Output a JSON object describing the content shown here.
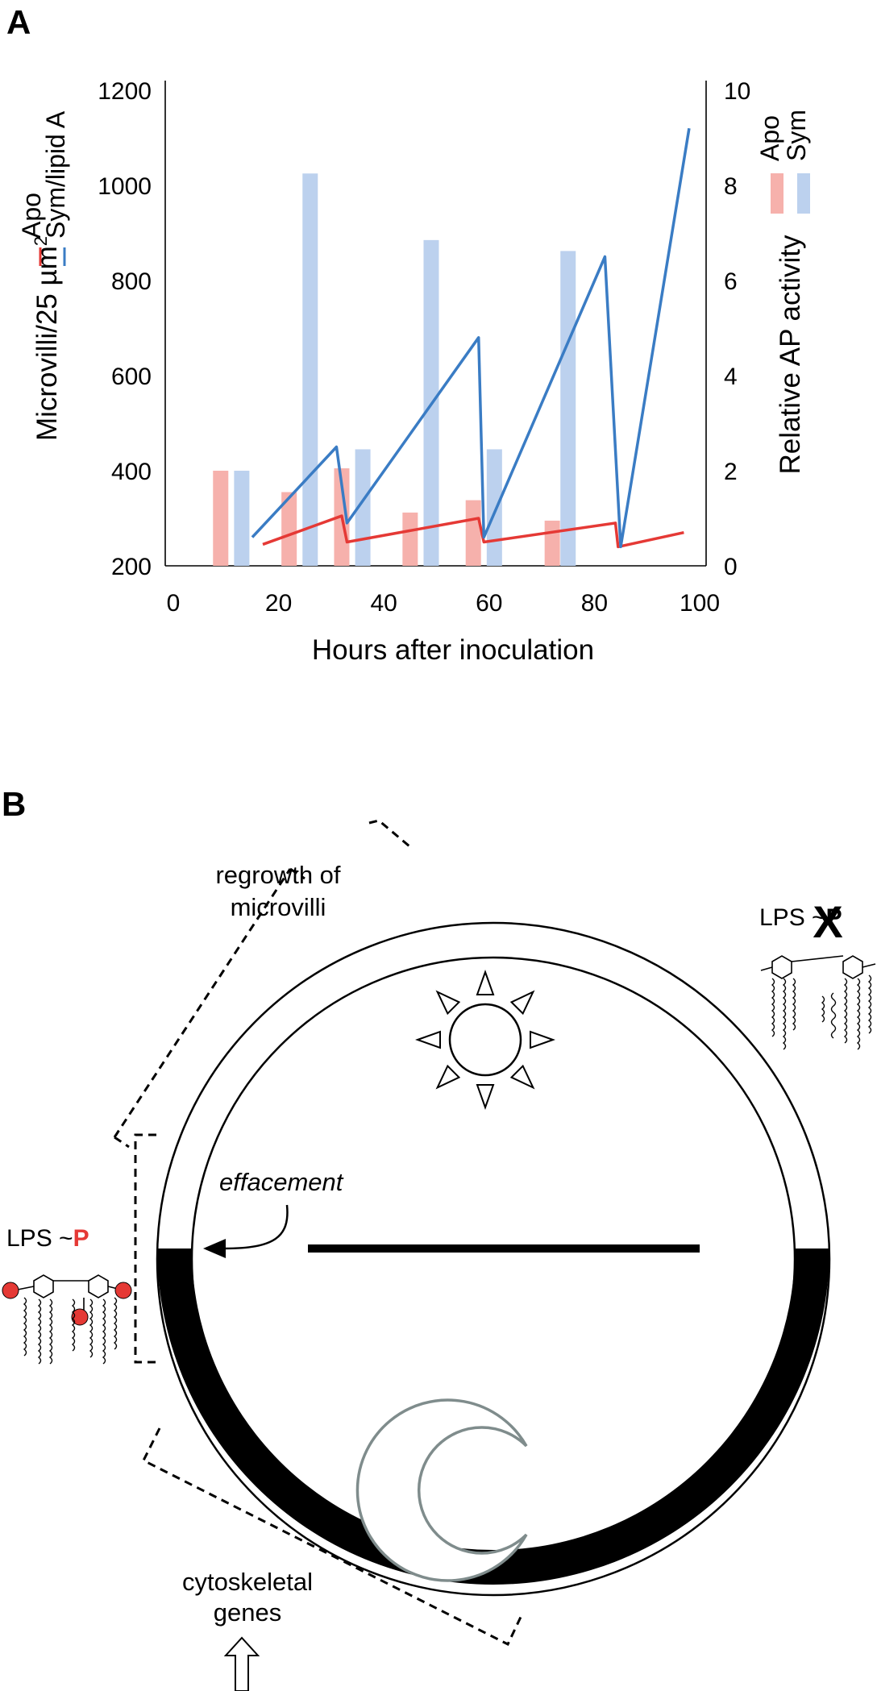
{
  "panel_a": {
    "label": "A"
  },
  "panel_b": {
    "label": "B",
    "regrowth_line1": "regrowth of",
    "regrowth_line2": "microvilli",
    "effacement": "effacement",
    "lps_left_prefix": "LPS ~",
    "lps_left_p": "P",
    "lps_right_prefix": "LPS ~",
    "lps_right_p": "P",
    "lps_right_mark": "X",
    "cyto_line1": "cytoskeletal",
    "cyto_line2": "genes",
    "colors": {
      "phosphate": "#e53935",
      "day_arc": "#ffffff",
      "night_arc": "#000000",
      "moon": "#7f8c8c"
    }
  },
  "chart_data": {
    "type": "bar",
    "xlabel": "Hours after inoculation",
    "ylabel": "Microvilli/25 µm²",
    "ylabel_base": "Microvilli/25 µm",
    "ylabel_sup": "2",
    "y2label": "Relative AP activity",
    "xlim": [
      0,
      100
    ],
    "ylim": [
      200,
      1200
    ],
    "y2lim": [
      0,
      10
    ],
    "xticks": [
      0,
      20,
      40,
      60,
      80,
      100
    ],
    "yticks": [
      200,
      400,
      600,
      800,
      1000,
      1200
    ],
    "y2ticks": [
      0,
      2,
      4,
      6,
      8,
      10
    ],
    "grid": false,
    "legend_left": {
      "placement": "left-of-y-axis",
      "entries": [
        {
          "name": "Apo",
          "color": "#e53935"
        },
        {
          "name": "Sym/lipid A",
          "color": "#3a7cc4"
        }
      ]
    },
    "legend_right": {
      "placement": "top-right",
      "entries": [
        {
          "name": "Apo",
          "color": "#f6b1ac"
        },
        {
          "name": "Sym",
          "color": "#bcd1ee"
        }
      ]
    },
    "bars": [
      {
        "name": "Apo",
        "color": "#f6b1ac",
        "axis": "left",
        "x": [
          9,
          22,
          32,
          45,
          57,
          72
        ],
        "values": [
          400,
          355,
          405,
          312,
          338,
          295
        ]
      },
      {
        "name": "Sym",
        "color": "#bcd1ee",
        "axis": "left",
        "x": [
          13,
          26,
          36,
          49,
          61,
          75
        ],
        "values": [
          400,
          1025,
          445,
          885,
          445,
          862
        ]
      }
    ],
    "series": [
      {
        "name": "Apo",
        "color": "#e53935",
        "axis": "right",
        "x": [
          17,
          32,
          33,
          58,
          59,
          84,
          84.5,
          97
        ],
        "y": [
          0.45,
          1.05,
          0.5,
          1.0,
          0.5,
          0.9,
          0.4,
          0.7
        ]
      },
      {
        "name": "Sym/lipid A",
        "color": "#3a7cc4",
        "axis": "right",
        "x": [
          15,
          31,
          33,
          58,
          59,
          82,
          85,
          98
        ],
        "y": [
          0.6,
          2.5,
          0.9,
          4.8,
          0.6,
          6.5,
          0.4,
          9.2
        ]
      }
    ]
  }
}
